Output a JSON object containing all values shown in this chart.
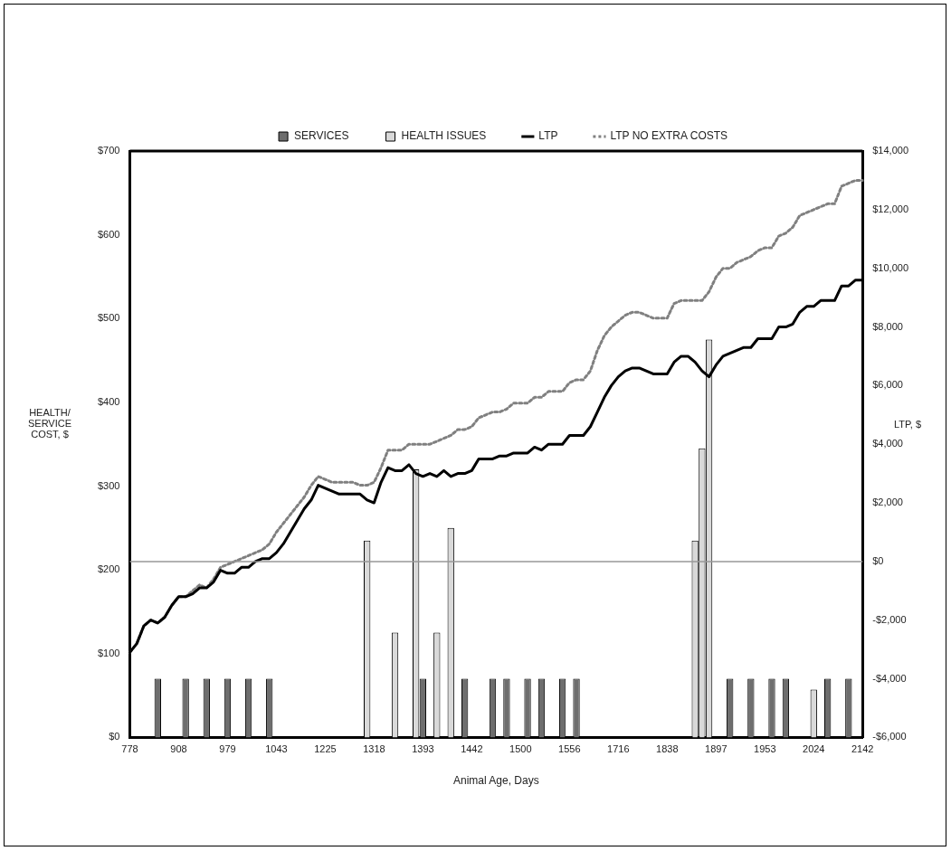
{
  "chart_data": {
    "type": "bar",
    "xlabel": "Animal Age, Days",
    "ylabel": "HEALTH/ SERVICE COST, $",
    "y2label": "LTP, $",
    "categories": [
      "778",
      null,
      null,
      null,
      null,
      null,
      null,
      "908",
      null,
      null,
      null,
      null,
      null,
      null,
      "979",
      null,
      null,
      null,
      null,
      null,
      null,
      "1043",
      null,
      null,
      null,
      null,
      null,
      null,
      "1225",
      null,
      null,
      null,
      null,
      null,
      null,
      "1318",
      null,
      null,
      null,
      null,
      null,
      null,
      "1393",
      null,
      null,
      null,
      null,
      null,
      null,
      "1442",
      null,
      null,
      null,
      null,
      null,
      null,
      "1500",
      null,
      null,
      null,
      null,
      null,
      null,
      "1556",
      null,
      null,
      null,
      null,
      null,
      null,
      "1716",
      null,
      null,
      null,
      null,
      null,
      null,
      "1838",
      null,
      null,
      null,
      null,
      null,
      null,
      "1897",
      null,
      null,
      null,
      null,
      null,
      null,
      "1953",
      null,
      null,
      null,
      null,
      null,
      null,
      "2024",
      null,
      null,
      null,
      null,
      null,
      null,
      "2142"
    ],
    "series": [
      {
        "name": "SERVICES",
        "color": "#6e6e6e",
        "values": [
          null,
          null,
          null,
          null,
          70,
          null,
          null,
          null,
          70,
          null,
          null,
          70,
          null,
          null,
          70,
          null,
          null,
          70,
          null,
          null,
          70,
          null,
          null,
          null,
          null,
          null,
          null,
          null,
          null,
          null,
          null,
          null,
          null,
          null,
          null,
          null,
          null,
          null,
          null,
          null,
          null,
          null,
          70,
          null,
          null,
          null,
          null,
          null,
          70,
          null,
          null,
          null,
          70,
          null,
          70,
          null,
          null,
          70,
          null,
          70,
          null,
          null,
          70,
          null,
          70,
          null,
          null,
          null,
          null,
          null,
          null,
          null,
          null,
          null,
          null,
          null,
          null,
          null,
          null,
          null,
          null,
          null,
          null,
          null,
          null,
          null,
          70,
          null,
          null,
          70,
          null,
          null,
          70,
          null,
          70,
          null,
          null,
          null,
          null,
          null,
          70,
          null,
          null,
          70,
          null,
          null
        ]
      },
      {
        "name": "HEALTH ISSUES",
        "color": "#d9d9d9",
        "values": [
          null,
          null,
          null,
          null,
          null,
          null,
          null,
          null,
          null,
          null,
          null,
          null,
          null,
          null,
          null,
          null,
          null,
          null,
          null,
          null,
          null,
          null,
          null,
          null,
          null,
          null,
          null,
          null,
          null,
          null,
          null,
          null,
          null,
          null,
          235,
          null,
          null,
          null,
          125,
          null,
          null,
          320,
          null,
          null,
          125,
          null,
          250,
          null,
          null,
          null,
          null,
          null,
          null,
          null,
          null,
          null,
          null,
          null,
          null,
          null,
          null,
          null,
          null,
          null,
          null,
          null,
          null,
          null,
          null,
          null,
          null,
          null,
          null,
          null,
          null,
          null,
          null,
          null,
          null,
          null,
          null,
          235,
          345,
          475,
          null,
          null,
          null,
          null,
          null,
          null,
          null,
          null,
          null,
          null,
          null,
          null,
          null,
          null,
          57,
          null,
          null,
          null,
          null,
          null,
          null,
          null
        ]
      },
      {
        "name": "LTP",
        "type": "line",
        "axis": "y2",
        "color": "#000000",
        "line_style": "solid",
        "values": [
          -3100,
          -2800,
          -2200,
          -2000,
          -2100,
          -1900,
          -1500,
          -1200,
          -1200,
          -1100,
          -900,
          -900,
          -700,
          -300,
          -400,
          -400,
          -200,
          -200,
          0,
          100,
          100,
          300,
          600,
          1000,
          1400,
          1800,
          2100,
          2600,
          2500,
          2400,
          2300,
          2300,
          2300,
          2300,
          2100,
          2000,
          2700,
          3200,
          3100,
          3100,
          3300,
          3000,
          2900,
          3000,
          2900,
          3100,
          2900,
          3000,
          3000,
          3100,
          3500,
          3500,
          3500,
          3600,
          3600,
          3700,
          3700,
          3700,
          3900,
          3800,
          4000,
          4000,
          4000,
          4300,
          4300,
          4300,
          4600,
          5100,
          5600,
          6000,
          6300,
          6500,
          6600,
          6600,
          6500,
          6400,
          6400,
          6400,
          6800,
          7000,
          7000,
          6800,
          6500,
          6300,
          6700,
          7000,
          7100,
          7200,
          7300,
          7300,
          7600,
          7600,
          7600,
          8000,
          8000,
          8100,
          8500,
          8700,
          8700,
          8900,
          8900,
          8900,
          9400,
          9400,
          9600,
          9600
        ]
      },
      {
        "name": "LTP NO EXTRA COSTS",
        "type": "line",
        "axis": "y2",
        "color": "#808080",
        "line_style": "dotted",
        "values": [
          -3100,
          -2800,
          -2200,
          -2000,
          -2100,
          -1900,
          -1500,
          -1200,
          -1200,
          -1000,
          -800,
          -900,
          -600,
          -200,
          -100,
          0,
          100,
          200,
          300,
          400,
          600,
          1000,
          1300,
          1600,
          1900,
          2200,
          2600,
          2900,
          2800,
          2700,
          2700,
          2700,
          2700,
          2600,
          2600,
          2700,
          3200,
          3800,
          3800,
          3800,
          4000,
          4000,
          4000,
          4000,
          4100,
          4200,
          4300,
          4500,
          4500,
          4600,
          4900,
          5000,
          5100,
          5100,
          5200,
          5400,
          5400,
          5400,
          5600,
          5600,
          5800,
          5800,
          5800,
          6100,
          6200,
          6200,
          6500,
          7200,
          7700,
          8000,
          8200,
          8400,
          8500,
          8500,
          8400,
          8300,
          8300,
          8300,
          8800,
          8900,
          8900,
          8900,
          8900,
          9200,
          9700,
          10000,
          10000,
          10200,
          10300,
          10400,
          10600,
          10700,
          10700,
          11100,
          11200,
          11400,
          11800,
          11900,
          12000,
          12100,
          12200,
          12200,
          12800,
          12900,
          13000,
          13000
        ]
      }
    ],
    "ylim": [
      0,
      700
    ],
    "yticks": [
      {
        "value": 0,
        "label": "$0"
      },
      {
        "value": 100,
        "label": "$100"
      },
      {
        "value": 200,
        "label": "$200"
      },
      {
        "value": 300,
        "label": "$300"
      },
      {
        "value": 400,
        "label": "$400"
      },
      {
        "value": 500,
        "label": "$500"
      },
      {
        "value": 600,
        "label": "$600"
      },
      {
        "value": 700,
        "label": "$700"
      }
    ],
    "y2lim": [
      -6000,
      14000
    ],
    "y2ticks": [
      {
        "value": -6000,
        "label": "-$6,000"
      },
      {
        "value": -4000,
        "label": "-$4,000"
      },
      {
        "value": -2000,
        "label": "-$2,000"
      },
      {
        "value": 0,
        "label": "$0"
      },
      {
        "value": 2000,
        "label": "$2,000"
      },
      {
        "value": 4000,
        "label": "$4,000"
      },
      {
        "value": 6000,
        "label": "$6,000"
      },
      {
        "value": 8000,
        "label": "$8,000"
      },
      {
        "value": 10000,
        "label": "$10,000"
      },
      {
        "value": 12000,
        "label": "$12,000"
      },
      {
        "value": 14000,
        "label": "$14,000"
      }
    ],
    "ref_lines": [
      {
        "axis": "y2",
        "value": 0,
        "color": "#999999"
      }
    ],
    "legend": "top",
    "grid": false,
    "marker": "none"
  }
}
